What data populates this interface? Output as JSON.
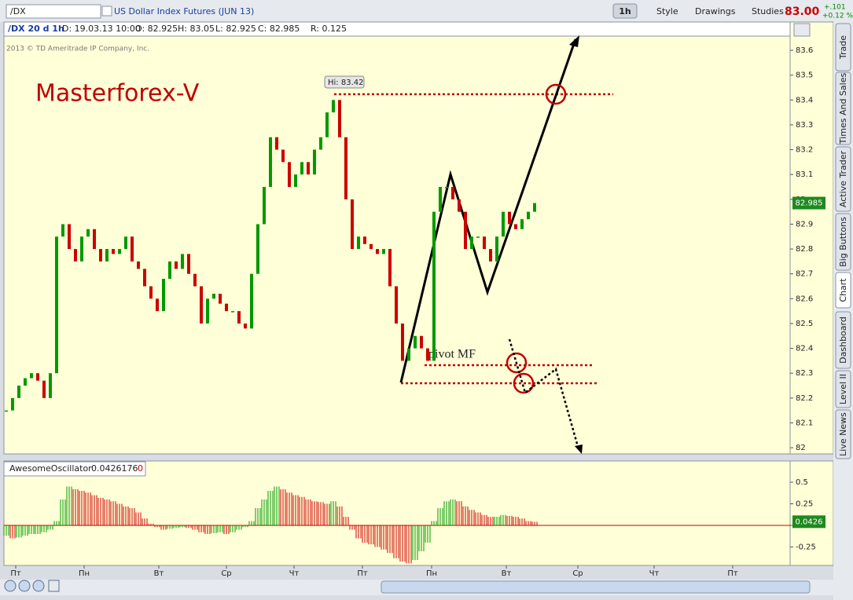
{
  "toolbar": {
    "symbol": "/DX",
    "description": "US Dollar Index Futures (JUN 13)",
    "interval": "1h",
    "style": "Style",
    "drawings": "Drawings",
    "studies": "Studies",
    "last": "83.00",
    "change": "+.101",
    "change_pct": "+0.12 %"
  },
  "side_tabs": [
    "Trade",
    "Times And Sales",
    "Active Trader",
    "Big Buttons",
    "Chart",
    "Dashboard",
    "Level II",
    "Live News"
  ],
  "chart_data": [
    {
      "type": "candlestick",
      "info": [
        "/DX 20 d 1h",
        "D: 19.03.13 10:00",
        "O: 82.925",
        "H: 83.05",
        "L: 82.925",
        "C: 82.985",
        "R: 0.125"
      ],
      "watermark": "2013 © TD Ameritrade IP Company, Inc.",
      "annotations": [
        "Masterforex-V",
        "Hi: 83.42",
        "pivot MF"
      ],
      "x": [
        3,
        11,
        19,
        27,
        35,
        43,
        51,
        59,
        67,
        75,
        83,
        91,
        99,
        107,
        115,
        123,
        131,
        139,
        147,
        155,
        163,
        171,
        179,
        187,
        195,
        203,
        211,
        219,
        227,
        235,
        243,
        251,
        259,
        267,
        275,
        283,
        291,
        299,
        307,
        315,
        323,
        331,
        339,
        347,
        355,
        363,
        371,
        379,
        387,
        395,
        403,
        411,
        419,
        427,
        435,
        443,
        451,
        459,
        467,
        475,
        483,
        491,
        499,
        507,
        515,
        523,
        531,
        539,
        547,
        555,
        563,
        571,
        579,
        587,
        595,
        603,
        611,
        619,
        627,
        635,
        643,
        651,
        659,
        667,
        675
      ],
      "values": [
        82.15,
        82.2,
        82.25,
        82.28,
        82.3,
        82.27,
        82.2,
        82.3,
        82.85,
        82.9,
        82.8,
        82.75,
        82.85,
        82.88,
        82.8,
        82.75,
        82.8,
        82.78,
        82.8,
        82.85,
        82.75,
        82.72,
        82.65,
        82.6,
        82.55,
        82.68,
        82.75,
        82.72,
        82.78,
        82.7,
        82.65,
        82.5,
        82.6,
        82.62,
        82.58,
        82.55,
        82.55,
        82.5,
        82.48,
        82.7,
        82.9,
        83.05,
        83.25,
        83.2,
        83.15,
        83.05,
        83.1,
        83.15,
        83.1,
        83.2,
        83.25,
        83.35,
        83.4,
        83.25,
        83.0,
        82.8,
        82.85,
        82.82,
        82.8,
        82.78,
        82.8,
        82.65,
        82.5,
        82.35,
        82.4,
        82.45,
        82.4,
        82.35,
        82.95,
        83.05,
        83.05,
        83.0,
        82.95,
        82.8,
        82.85,
        82.85,
        82.8,
        82.75,
        82.85,
        82.95,
        82.9,
        82.88,
        82.92,
        82.95,
        82.985
      ],
      "up_color": "#009900",
      "down_color": "#cc0000",
      "xlim": [
        0,
        1000
      ],
      "xticks": [
        {
          "value": 15,
          "label": "Пт"
        },
        {
          "value": 102,
          "label": "Пн"
        },
        {
          "value": 197,
          "label": "Вт"
        },
        {
          "value": 283,
          "label": "Ср"
        },
        {
          "value": 369,
          "label": "Чт"
        },
        {
          "value": 456,
          "label": "Пт"
        },
        {
          "value": 544,
          "label": "Пн"
        },
        {
          "value": 639,
          "label": "Вт"
        },
        {
          "value": 730,
          "label": "Ср"
        },
        {
          "value": 827,
          "label": "Чт"
        },
        {
          "value": 927,
          "label": "Пт"
        }
      ],
      "ylim": [
        81.975,
        83.714
      ],
      "yticks": [
        82,
        82.1,
        82.2,
        82.3,
        82.4,
        82.5,
        82.6,
        82.7,
        82.8,
        82.9,
        83,
        83.1,
        83.2,
        83.3,
        83.4,
        83.5,
        83.6
      ],
      "grid": false
    },
    {
      "type": "bar",
      "name": "AwesomeOscillator",
      "value_text": "0.0426176",
      "flag": "0",
      "x": [
        3,
        11,
        19,
        27,
        35,
        43,
        51,
        59,
        67,
        75,
        83,
        91,
        99,
        107,
        115,
        123,
        131,
        139,
        147,
        155,
        163,
        171,
        179,
        187,
        195,
        203,
        211,
        219,
        227,
        235,
        243,
        251,
        259,
        267,
        275,
        283,
        291,
        299,
        307,
        315,
        323,
        331,
        339,
        347,
        355,
        363,
        371,
        379,
        387,
        395,
        403,
        411,
        419,
        427,
        435,
        443,
        451,
        459,
        467,
        475,
        483,
        491,
        499,
        507,
        515,
        523,
        531,
        539,
        547,
        555,
        563,
        571,
        579,
        587,
        595,
        603,
        611,
        619,
        627,
        635,
        643,
        651,
        659,
        667,
        675
      ],
      "values": [
        -0.12,
        -0.15,
        -0.14,
        -0.12,
        -0.1,
        -0.1,
        -0.08,
        -0.05,
        0.05,
        0.3,
        0.45,
        0.42,
        0.4,
        0.38,
        0.35,
        0.32,
        0.3,
        0.28,
        0.25,
        0.22,
        0.2,
        0.15,
        0.08,
        0.02,
        -0.02,
        -0.05,
        -0.04,
        -0.03,
        -0.02,
        -0.03,
        -0.05,
        -0.08,
        -0.1,
        -0.09,
        -0.08,
        -0.1,
        -0.08,
        -0.05,
        -0.02,
        0.05,
        0.2,
        0.3,
        0.4,
        0.45,
        0.42,
        0.38,
        0.35,
        0.33,
        0.3,
        0.28,
        0.27,
        0.25,
        0.28,
        0.22,
        0.1,
        -0.05,
        -0.15,
        -0.2,
        -0.22,
        -0.25,
        -0.28,
        -0.32,
        -0.38,
        -0.42,
        -0.44,
        -0.4,
        -0.3,
        -0.2,
        0.05,
        0.2,
        0.28,
        0.3,
        0.28,
        0.22,
        0.18,
        0.15,
        0.12,
        0.1,
        0.1,
        0.12,
        0.11,
        0.1,
        0.08,
        0.05,
        0.0426
      ],
      "up_color": "#009900",
      "down_color": "#cc0000",
      "xlim": [
        0,
        1000
      ],
      "ylim": [
        -0.464,
        0.564
      ],
      "yticks": [
        -0.25,
        0,
        0.25,
        0.5
      ]
    }
  ]
}
